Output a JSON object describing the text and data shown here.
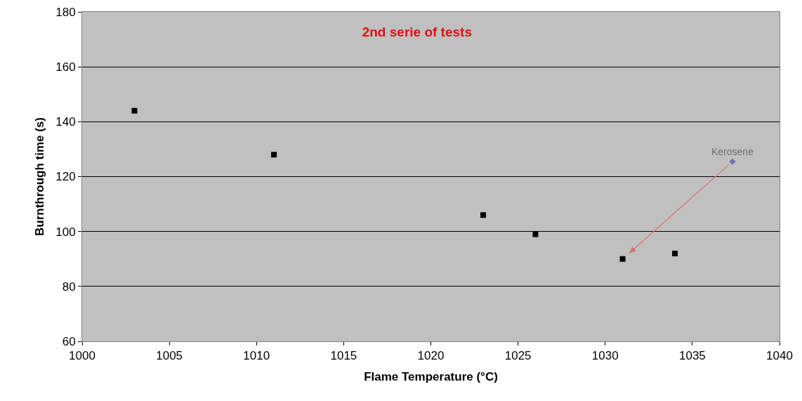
{
  "chart_data": {
    "type": "scatter",
    "title": "2nd serie of tests",
    "xlabel": "Flame Temperature (°C)",
    "ylabel": "Burnthrough time (s)",
    "series": [
      {
        "color": "#000000",
        "marker": "square",
        "x": [
          1003,
          1011,
          1023,
          1026,
          1031,
          1034
        ],
        "values": [
          144,
          128,
          106,
          99,
          90,
          92
        ]
      },
      {
        "name": "Kerosene",
        "color": "#6f6fbf",
        "marker": "diamond",
        "x": [
          1037.3
        ],
        "values": [
          125.5
        ]
      }
    ],
    "xlim": [
      1000,
      1040
    ],
    "xticks": [
      1000,
      1005,
      1010,
      1015,
      1020,
      1025,
      1030,
      1035,
      1040
    ],
    "ylim": [
      60,
      180
    ],
    "yticks": [
      60,
      80,
      100,
      120,
      140,
      160,
      180
    ],
    "grid": "y"
  }
}
